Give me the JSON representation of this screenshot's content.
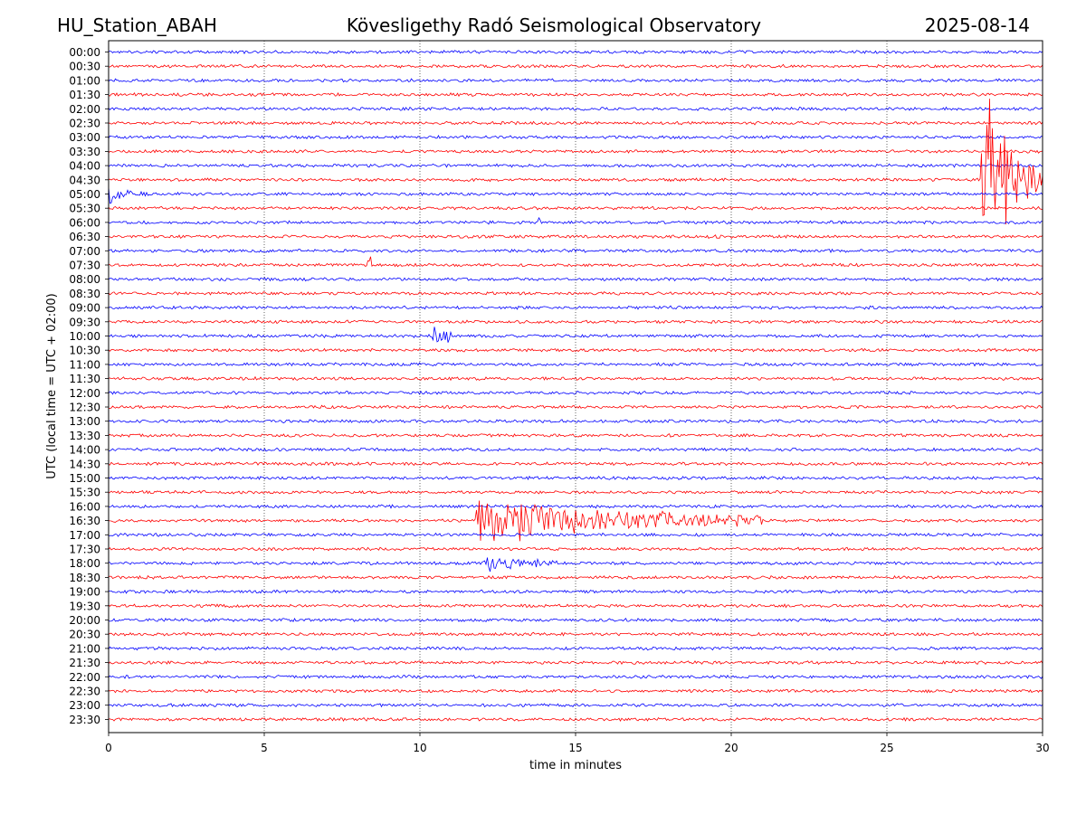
{
  "header": {
    "station": "HU_Station_ABAH",
    "title": "Kövesligethy Radó Seismological Observatory",
    "date": "2025-08-14"
  },
  "colors": {
    "even_row": "#0000ff",
    "odd_row": "#ff0000",
    "grid": "#000000"
  },
  "chart_data": {
    "type": "line",
    "subtype": "helicorder",
    "xlabel": "time in minutes",
    "ylabel": "UTC (local time = UTC + 02:00)",
    "xlim": [
      0,
      30
    ],
    "x_ticks": [
      "0",
      "5",
      "10",
      "15",
      "20",
      "25",
      "30"
    ],
    "x_tick_values": [
      0,
      5,
      10,
      15,
      20,
      25,
      30
    ],
    "x_grid": "dotted at 5,10,15,20,25",
    "rows": [
      "00:00",
      "00:30",
      "01:00",
      "01:30",
      "02:00",
      "02:30",
      "03:00",
      "03:30",
      "04:00",
      "04:30",
      "05:00",
      "05:30",
      "06:00",
      "06:30",
      "07:00",
      "07:30",
      "08:00",
      "08:30",
      "09:00",
      "09:30",
      "10:00",
      "10:30",
      "11:00",
      "11:30",
      "12:00",
      "12:30",
      "13:00",
      "13:30",
      "14:00",
      "14:30",
      "15:00",
      "15:30",
      "16:00",
      "16:30",
      "17:00",
      "17:30",
      "18:00",
      "18:30",
      "19:00",
      "19:30",
      "20:00",
      "20:30",
      "21:00",
      "21:30",
      "22:00",
      "22:30",
      "23:00",
      "23:30"
    ],
    "row_colors": "alternating blue / red",
    "events": [
      {
        "row": "04:30",
        "start_min": 28.0,
        "end_min": 30.0,
        "peak_amplitude": 6.0,
        "decay": 0.9
      },
      {
        "row": "05:00",
        "start_min": 0.0,
        "end_min": 2.2,
        "peak_amplitude": 0.35,
        "decay": 1.5
      },
      {
        "row": "06:00",
        "start_min": 13.8,
        "end_min": 13.9,
        "peak_amplitude": 0.4,
        "decay": 0.2
      },
      {
        "row": "07:30",
        "start_min": 8.3,
        "end_min": 8.5,
        "peak_amplitude": 0.5,
        "decay": 0.2
      },
      {
        "row": "10:00",
        "start_min": 10.4,
        "end_min": 11.0,
        "peak_amplitude": 0.55,
        "decay": 0.3
      },
      {
        "row": "16:30",
        "start_min": 11.8,
        "end_min": 21.0,
        "peak_amplitude": 1.0,
        "decay": 0.6
      },
      {
        "row": "18:00",
        "start_min": 12.0,
        "end_min": 14.5,
        "peak_amplitude": 0.35,
        "decay": 0.5
      }
    ]
  }
}
